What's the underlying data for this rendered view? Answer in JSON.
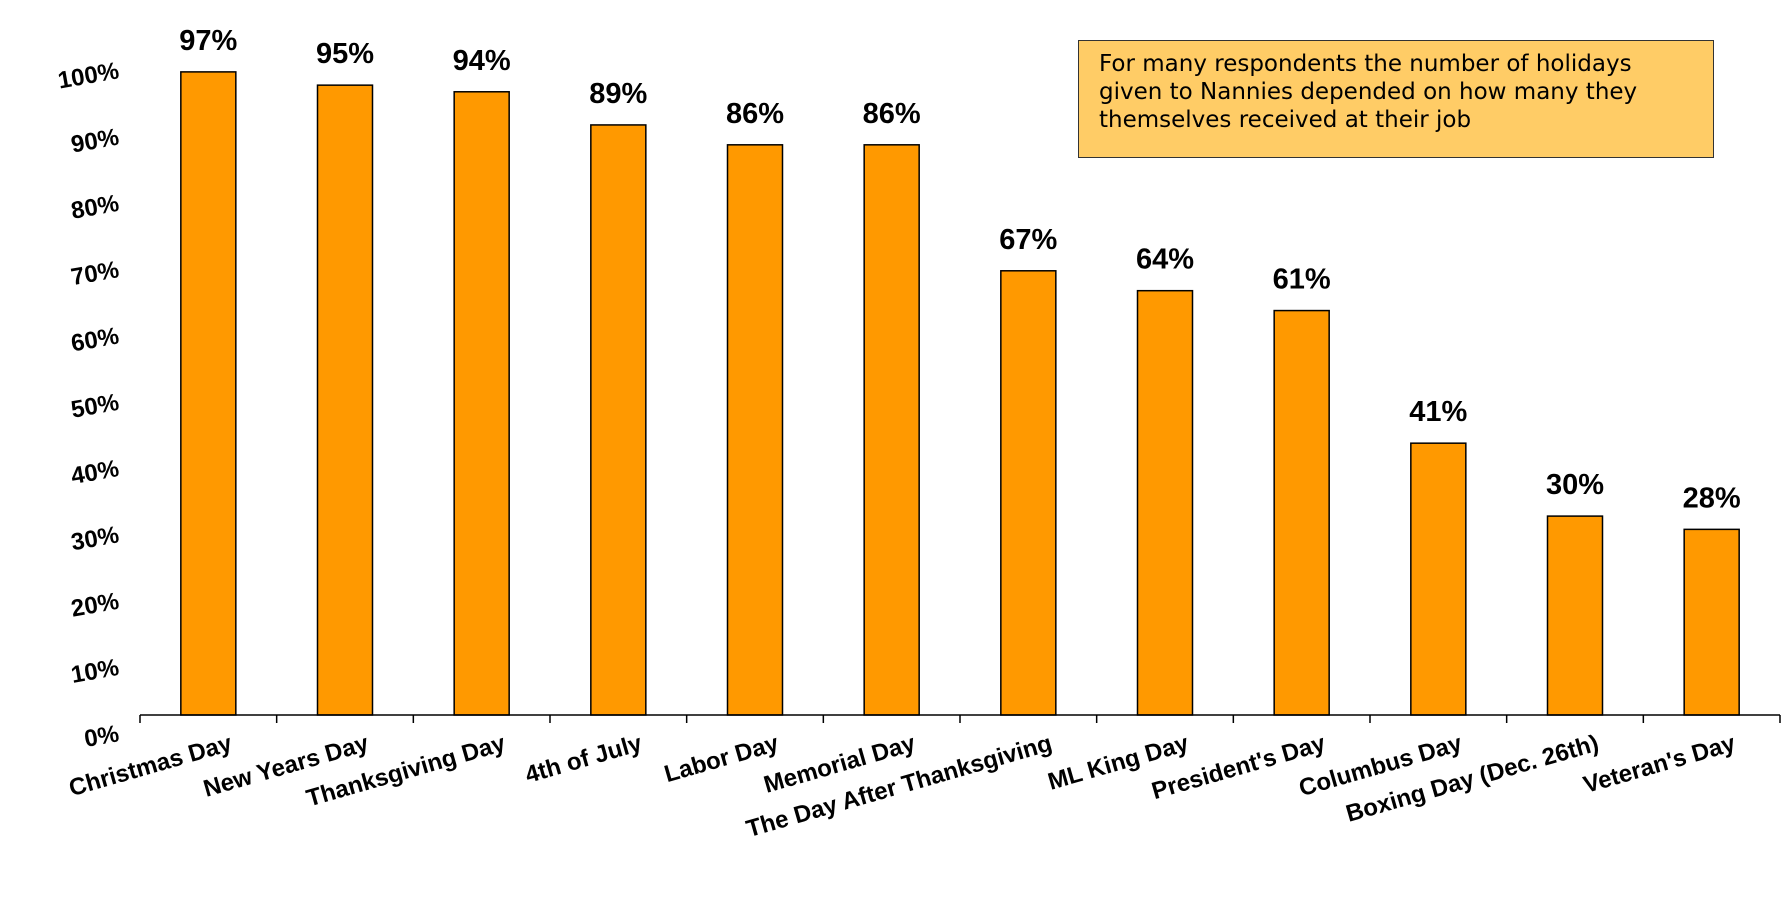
{
  "chart_data": {
    "type": "bar",
    "categories": [
      "Christmas Day",
      "New Years Day",
      "Thanksgiving Day",
      "4th of July",
      "Labor Day",
      "Memorial Day",
      "The Day After Thanksgiving",
      "ML King Day",
      "President's Day",
      "Columbus Day",
      "Boxing Day (Dec. 26th)",
      "Veteran's Day"
    ],
    "values": [
      97,
      95,
      94,
      89,
      86,
      86,
      67,
      64,
      61,
      41,
      30,
      28
    ],
    "value_labels": [
      "97%",
      "95%",
      "94%",
      "89%",
      "86%",
      "86%",
      "67%",
      "64%",
      "61%",
      "41%",
      "30%",
      "28%"
    ],
    "ylim": [
      0,
      100
    ],
    "y_ticks": [
      0,
      10,
      20,
      30,
      40,
      50,
      60,
      70,
      80,
      90,
      100
    ],
    "y_tick_labels": [
      "0%",
      "10%",
      "20%",
      "30%",
      "40%",
      "50%",
      "60%",
      "70%",
      "80%",
      "90%",
      "100%"
    ],
    "bar_color": "#ff9900",
    "bar_edge_color": "#000000",
    "grid": false,
    "annotation": "For many respondents the number of holidays given to Nannies depended on how many they themselves received at their job",
    "annotation_bg": "#ffcc66"
  }
}
